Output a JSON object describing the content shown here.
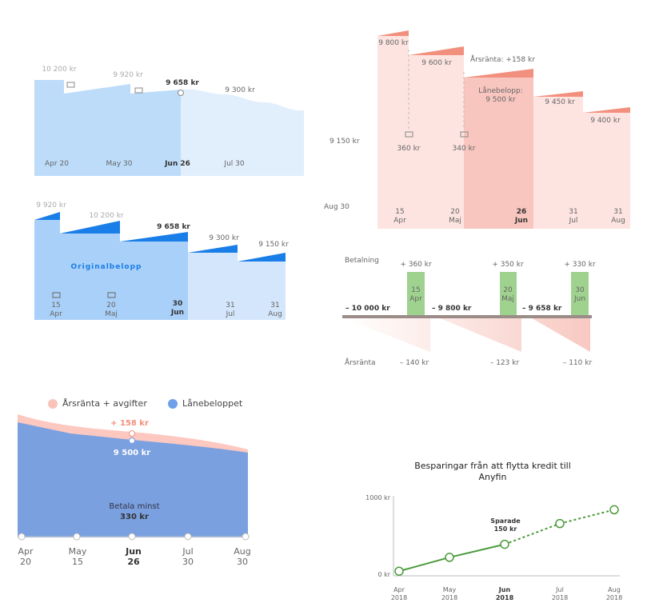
{
  "panel_1": {
    "amounts": [
      "10 200 kr",
      "9 920 kr",
      "9 658 kr",
      "9 300 kr"
    ],
    "dates": [
      "Apr 20",
      "May 30",
      "Jun 26",
      "Jul 30"
    ]
  },
  "panel_2": {
    "amounts": [
      "9 920 kr",
      "10 200 kr",
      "9 658 kr",
      "9 300 kr",
      "9 150 kr"
    ],
    "label": "Originalbelopp",
    "dates": [
      "15\nApr",
      "20\nMaj",
      "30\nJun",
      "31\nJul",
      "31\nAug"
    ]
  },
  "panel_3": {
    "amounts": [
      "9 800 kr",
      "9 600 kr",
      "9 450 kr",
      "9 400 kr"
    ],
    "interest": "Årsränta: +158 kr",
    "loan": "Lånebelopp:\n9 500 kr",
    "side_labels": [
      "9 150 kr",
      "Aug 30"
    ],
    "payments": [
      "360 kr",
      "340 kr"
    ],
    "dates": [
      "15\nApr",
      "20\nMaj",
      "26\nJun",
      "31\nJul",
      "31\nAug"
    ]
  },
  "panel_4": {
    "payment_label": "Betalning",
    "payments": [
      "+ 360 kr",
      "+ 350 kr",
      "+ 330 kr"
    ],
    "payment_dates": [
      "15\nApr",
      "20\nMaj",
      "30\nJun"
    ],
    "balances": [
      "– 10 000 kr",
      "– 9 800 kr",
      "– 9 658 kr"
    ],
    "interest_label": "Årsränta",
    "interest": [
      "– 140 kr",
      "– 123 kr",
      "– 110 kr"
    ]
  },
  "panel_5": {
    "legend": [
      "Årsränta + avgifter",
      "Lånebeloppet"
    ],
    "interest": "+ 158 kr",
    "loan": "9 500 kr",
    "min_label": "Betala minst",
    "min_amount": "330 kr",
    "dates": [
      "Apr\n20",
      "May\n15",
      "Jun\n26",
      "Jul\n30",
      "Aug\n30"
    ]
  },
  "chart_data": {
    "type": "line",
    "title": "Besparingar från att flytta kredit till Anyfin",
    "categories": [
      "Apr\n2018",
      "May\n2018",
      "Jun\n2018",
      "Jul\n2018",
      "Aug\n2018"
    ],
    "values": [
      50,
      230,
      400,
      670,
      850
    ],
    "color": "#4a9a3a",
    "ylim": [
      0,
      1000
    ],
    "yticks": [
      {
        "value": 0,
        "label": "0 kr"
      },
      {
        "value": 1000,
        "label": "1000 kr"
      }
    ],
    "annotation": "Sparade\n150 kr"
  }
}
